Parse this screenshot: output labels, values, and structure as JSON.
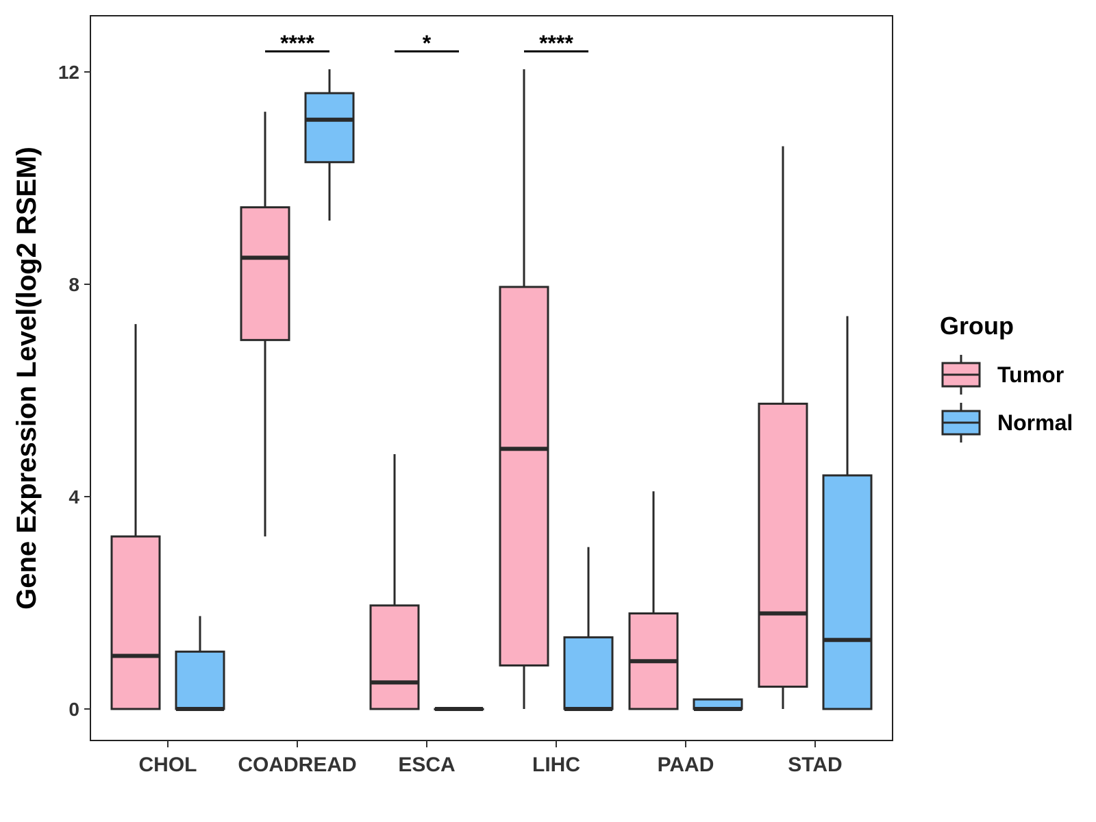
{
  "chart_data": {
    "type": "box",
    "title": "",
    "xlabel": "",
    "ylabel": "Gene Expression Level(log2 RSEM)",
    "ylim": [
      -0.6,
      13.0
    ],
    "yticks": [
      "0",
      "4",
      "8",
      "12"
    ],
    "categories": [
      "CHOL",
      "COADREAD",
      "ESCA",
      "LIHC",
      "PAAD",
      "STAD"
    ],
    "legend": {
      "title": "Group",
      "position": "right"
    },
    "grid": false,
    "series": [
      {
        "name": "Tumor",
        "color": "#FBB0C2",
        "boxes": [
          {
            "category": "CHOL",
            "min": 0.0,
            "q1": 0.0,
            "median": 1.0,
            "q3": 3.25,
            "max": 7.25
          },
          {
            "category": "COADREAD",
            "min": 3.25,
            "q1": 6.95,
            "median": 8.5,
            "q3": 9.45,
            "max": 11.25
          },
          {
            "category": "ESCA",
            "min": 0.0,
            "q1": 0.0,
            "median": 0.5,
            "q3": 1.95,
            "max": 4.8
          },
          {
            "category": "LIHC",
            "min": 0.0,
            "q1": 0.82,
            "median": 4.9,
            "q3": 7.95,
            "max": 12.05
          },
          {
            "category": "PAAD",
            "min": 0.0,
            "q1": 0.0,
            "median": 0.9,
            "q3": 1.8,
            "max": 4.1
          },
          {
            "category": "STAD",
            "min": 0.0,
            "q1": 0.42,
            "median": 1.8,
            "q3": 5.75,
            "max": 10.6
          }
        ]
      },
      {
        "name": "Normal",
        "color": "#79C1F7",
        "boxes": [
          {
            "category": "CHOL",
            "min": 0.0,
            "q1": 0.0,
            "median": 0.0,
            "q3": 1.08,
            "max": 1.75
          },
          {
            "category": "COADREAD",
            "min": 9.2,
            "q1": 10.3,
            "median": 11.1,
            "q3": 11.6,
            "max": 12.05
          },
          {
            "category": "ESCA",
            "min": 0.0,
            "q1": 0.0,
            "median": 0.0,
            "q3": 0.0,
            "max": 0.0
          },
          {
            "category": "LIHC",
            "min": 0.0,
            "q1": 0.0,
            "median": 0.0,
            "q3": 1.35,
            "max": 3.05
          },
          {
            "category": "PAAD",
            "min": 0.0,
            "q1": 0.0,
            "median": 0.0,
            "q3": 0.18,
            "max": 0.18
          },
          {
            "category": "STAD",
            "min": 0.0,
            "q1": 0.0,
            "median": 1.3,
            "q3": 4.4,
            "max": 7.4
          }
        ]
      }
    ],
    "annotations": [
      {
        "category": "COADREAD",
        "label": "****"
      },
      {
        "category": "ESCA",
        "label": "*"
      },
      {
        "category": "LIHC",
        "label": "****"
      }
    ]
  }
}
